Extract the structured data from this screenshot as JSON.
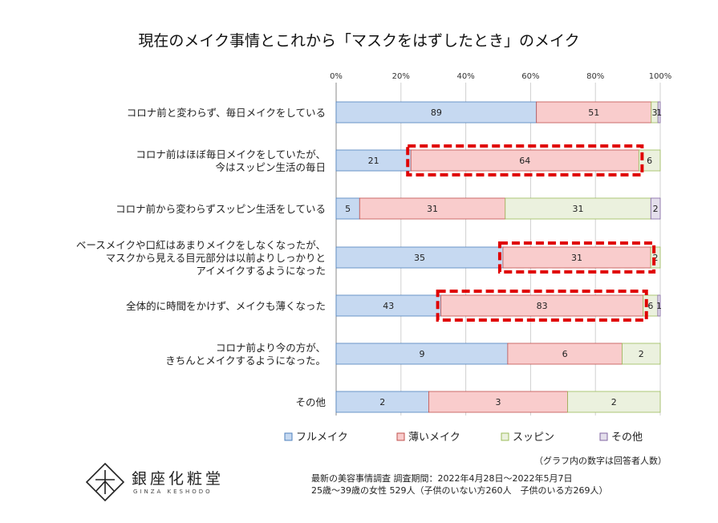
{
  "chart_data": {
    "type": "bar",
    "orientation": "horizontal",
    "stacked": "percent",
    "title": "現在のメイク事情とこれから「マスクをはずしたとき」のメイク",
    "xlim": [
      0,
      100
    ],
    "x_ticks": [
      "0%",
      "20%",
      "40%",
      "60%",
      "80%",
      "100%"
    ],
    "grid": true,
    "legend_position": "bottom",
    "categories": [
      [
        "コロナ前と変わらず、毎日メイクをしている"
      ],
      [
        "コロナ前はほぼ毎日メイクをしていたが、",
        "今はスッピン生活の毎日"
      ],
      [
        "コロナ前から変わらずスッピン生活をしている"
      ],
      [
        "ベースメイクや口紅はあまりメイクをしなくなったが、",
        "マスクから見える目元部分は以前よりしっかりと",
        "アイメイクするようになった"
      ],
      [
        "全体的に時間をかけず、メイクも薄くなった"
      ],
      [
        "コロナ前より今の方が、",
        "きちんとメイクするようになった。"
      ],
      [
        "その他"
      ]
    ],
    "series": [
      {
        "name": "フルメイク",
        "values": [
          89,
          21,
          5,
          35,
          43,
          9,
          2
        ],
        "color": "#c6d9f1",
        "border": "#4f81bd"
      },
      {
        "name": "薄いメイク",
        "values": [
          51,
          64,
          31,
          31,
          83,
          6,
          3
        ],
        "color": "#f9cccc",
        "border": "#c0504d"
      },
      {
        "name": "スッピン",
        "values": [
          3,
          6,
          31,
          2,
          6,
          2,
          2
        ],
        "color": "#ebf1de",
        "border": "#9bbb59"
      },
      {
        "name": "その他",
        "values": [
          1,
          0,
          2,
          0,
          1,
          0,
          0
        ],
        "color": "#e4dfec",
        "border": "#8064a2"
      }
    ],
    "highlighted": [
      {
        "category_index": 1,
        "series_index": 1
      },
      {
        "category_index": 3,
        "series_index": 1
      },
      {
        "category_index": 4,
        "series_index": 1
      }
    ],
    "highlight_color": "#e00000",
    "data_label_note": "（グラフ内の数字は回答者人数）"
  },
  "footer": {
    "brand_name": "銀座化粧堂",
    "brand_sub": "GINZA KESHODO",
    "survey_line1": "最新の美容事情調査 調査期間：2022年4月28日～2022年5月7日",
    "survey_line2": "25歳～39歳の女性 529人（子供のいない方260人　子供のいる方269人）"
  }
}
